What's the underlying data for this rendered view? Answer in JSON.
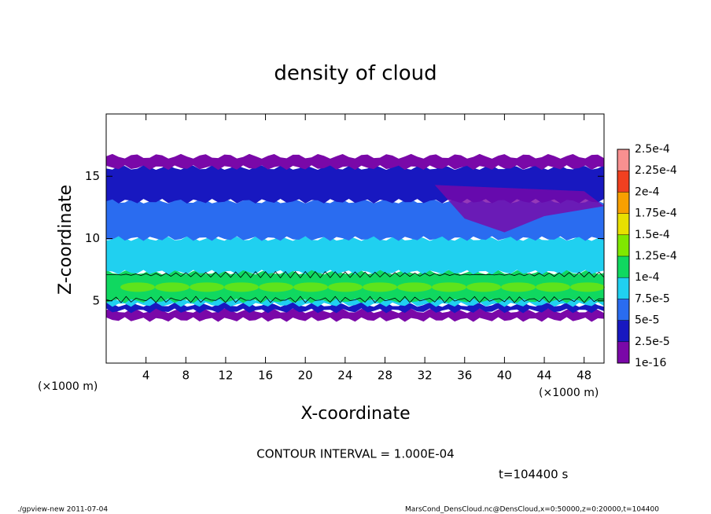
{
  "chart_data": {
    "type": "contour",
    "title": "density of cloud",
    "xlabel": "X-coordinate",
    "ylabel": "Z-coordinate",
    "x_unit_labels": [
      "(×1000 m)",
      "(×1000 m)"
    ],
    "xlim": [
      0,
      50
    ],
    "ylim": [
      0,
      20
    ],
    "xticks": [
      4,
      8,
      12,
      16,
      20,
      24,
      28,
      32,
      36,
      40,
      44,
      48
    ],
    "yticks": [
      5,
      10,
      15
    ],
    "colorbar": {
      "levels": [
        {
          "value": 1e-16,
          "label": "1e-16"
        },
        {
          "value": 2.5e-05,
          "label": "2.5e-5"
        },
        {
          "value": 5e-05,
          "label": "5e-5"
        },
        {
          "value": 7.5e-05,
          "label": "7.5e-5"
        },
        {
          "value": 0.0001,
          "label": "1e-4"
        },
        {
          "value": 0.000125,
          "label": "1.25e-4"
        },
        {
          "value": 0.00015,
          "label": "1.5e-4"
        },
        {
          "value": 0.000175,
          "label": "1.75e-4"
        },
        {
          "value": 0.0002,
          "label": "2e-4"
        },
        {
          "value": 0.000225,
          "label": "2.25e-4"
        },
        {
          "value": 0.00025,
          "label": "2.5e-4"
        }
      ],
      "colors": [
        "#7a08a8",
        "#1818c0",
        "#2a6cf0",
        "#20d0f0",
        "#10d860",
        "#80e800",
        "#e8e000",
        "#f8a000",
        "#f04020",
        "#f89090"
      ]
    },
    "annotations": [
      "CONTOUR INTERVAL = 1.000E-04",
      "t=104400 s"
    ],
    "footer": [
      "./gpview-new  2011-07-04",
      "MarsCond_DensCloud.nc@DensCloud,x=0:50000,z=0:20000,t=104400"
    ]
  }
}
